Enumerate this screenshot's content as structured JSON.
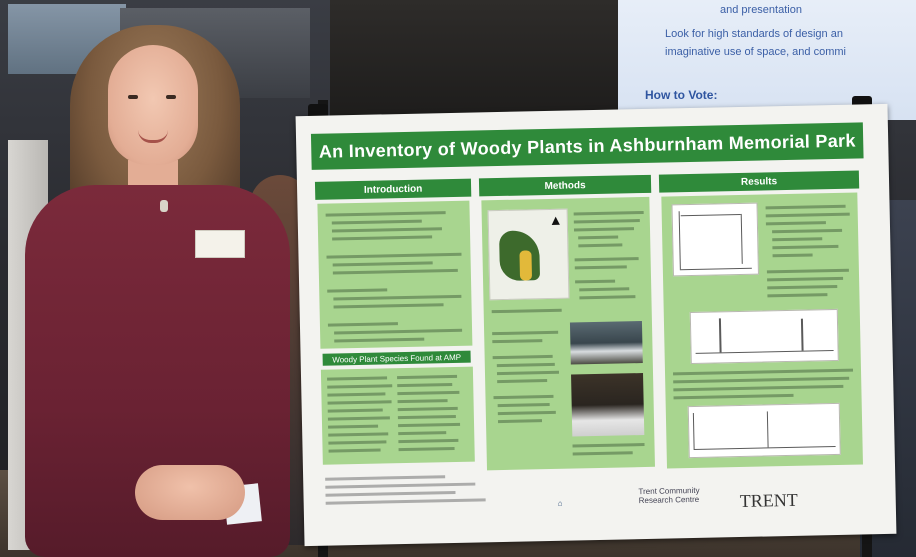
{
  "screen": {
    "line1": "and presentation",
    "line2": "Look for high standards of design an",
    "line3": "imaginative use of space, and commi",
    "heading": "How to Vote:"
  },
  "poster": {
    "title": "An Inventory of Woody Plants in Ashburnham Memorial Park",
    "sections": {
      "introduction": "Introduction",
      "methods": "Methods",
      "results": "Results"
    },
    "species_heading": "Woody Plant Species Found at AMP",
    "logos": {
      "trent_community": "Trent Community Research Centre",
      "trent": "TRENT"
    }
  },
  "colors": {
    "poster_green": "#2f8a3a",
    "panel_green": "#a8d58f",
    "sweater": "#6a2233"
  }
}
